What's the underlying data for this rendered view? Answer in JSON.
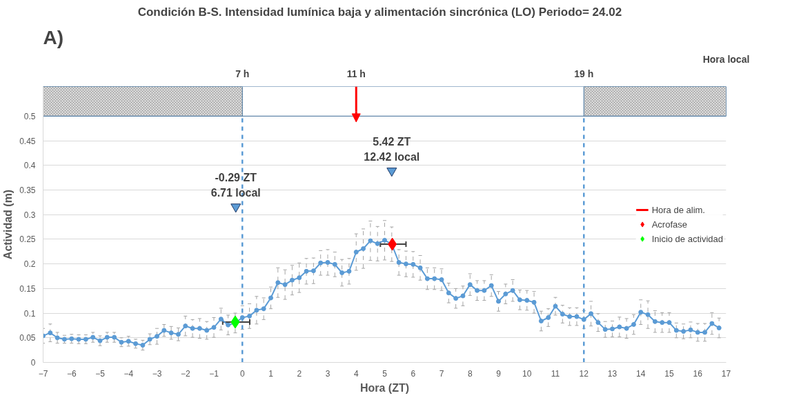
{
  "chart_data": {
    "type": "line",
    "title": "Condición B-S. Intensidad lumínica baja y alimentación sincrónica (LO)    Periodo= 24.02",
    "xlabel": "Hora (ZT)",
    "ylabel": "Actividad (m)",
    "x2label": "Hora local",
    "xlim": [
      -7,
      17
    ],
    "xticks": [
      -7,
      -6,
      -5,
      -4,
      -3,
      -2,
      -1,
      0,
      1,
      2,
      3,
      4,
      5,
      6,
      7,
      8,
      9,
      10,
      11,
      12,
      13,
      14,
      15,
      16,
      17
    ],
    "x2lim": [
      0,
      24
    ],
    "x2ticks": [
      {
        "value": 7,
        "label": "7 h"
      },
      {
        "value": 11,
        "label": "11 h"
      },
      {
        "value": 19,
        "label": "19 h"
      }
    ],
    "ylim": [
      0,
      0.56
    ],
    "yticks": [
      0,
      0.05,
      0.1,
      0.15,
      0.2,
      0.25,
      0.3,
      0.35,
      0.4,
      0.45,
      0.5
    ],
    "grid": true,
    "legend": "right",
    "series": [
      {
        "marker": "circle",
        "color": "#5b9bd5",
        "x": [
          -7,
          -6.75,
          -6.5,
          -6.25,
          -6,
          -5.75,
          -5.5,
          -5.25,
          -5,
          -4.75,
          -4.5,
          -4.25,
          -4,
          -3.75,
          -3.5,
          -3.25,
          -3,
          -2.75,
          -2.5,
          -2.25,
          -2,
          -1.75,
          -1.5,
          -1.25,
          -1,
          -0.75,
          -0.5,
          -0.25,
          0,
          0.25,
          0.5,
          0.75,
          1,
          1.25,
          1.5,
          1.75,
          2,
          2.25,
          2.5,
          2.75,
          3,
          3.25,
          3.5,
          3.75,
          4,
          4.25,
          4.5,
          4.75,
          5,
          5.25,
          5.5,
          5.75,
          6,
          6.25,
          6.5,
          6.75,
          7,
          7.25,
          7.5,
          7.75,
          8,
          8.25,
          8.5,
          8.75,
          9,
          9.25,
          9.5,
          9.75,
          10,
          10.25,
          10.5,
          10.75,
          11,
          11.25,
          11.5,
          11.75,
          12,
          12.25,
          12.5,
          12.75,
          13,
          13.25,
          13.5,
          13.75,
          14,
          14.25,
          14.5,
          14.75,
          15,
          15.25,
          15.5,
          15.75,
          16,
          16.25,
          16.5,
          16.75
        ],
        "values": [
          0.054,
          0.06,
          0.05,
          0.047,
          0.048,
          0.047,
          0.047,
          0.051,
          0.044,
          0.051,
          0.051,
          0.041,
          0.043,
          0.038,
          0.035,
          0.047,
          0.053,
          0.065,
          0.06,
          0.057,
          0.074,
          0.069,
          0.069,
          0.065,
          0.071,
          0.088,
          0.076,
          0.08,
          0.091,
          0.094,
          0.106,
          0.109,
          0.131,
          0.162,
          0.158,
          0.167,
          0.172,
          0.185,
          0.186,
          0.202,
          0.203,
          0.199,
          0.182,
          0.185,
          0.224,
          0.231,
          0.247,
          0.241,
          0.248,
          0.24,
          0.203,
          0.2,
          0.199,
          0.192,
          0.17,
          0.17,
          0.168,
          0.141,
          0.13,
          0.135,
          0.158,
          0.146,
          0.146,
          0.156,
          0.124,
          0.139,
          0.146,
          0.127,
          0.126,
          0.122,
          0.084,
          0.091,
          0.114,
          0.098,
          0.093,
          0.093,
          0.087,
          0.099,
          0.081,
          0.067,
          0.068,
          0.072,
          0.069,
          0.077,
          0.102,
          0.097,
          0.083,
          0.081,
          0.081,
          0.065,
          0.063,
          0.066,
          0.061,
          0.061,
          0.079,
          0.07
        ],
        "errors": [
          0.015,
          0.018,
          0.011,
          0.008,
          0.009,
          0.009,
          0.009,
          0.01,
          0.01,
          0.01,
          0.01,
          0.009,
          0.01,
          0.009,
          0.01,
          0.011,
          0.016,
          0.012,
          0.013,
          0.013,
          0.02,
          0.018,
          0.02,
          0.018,
          0.02,
          0.022,
          0.02,
          0.02,
          0.024,
          0.025,
          0.028,
          0.022,
          0.022,
          0.03,
          0.03,
          0.03,
          0.03,
          0.026,
          0.026,
          0.025,
          0.026,
          0.025,
          0.027,
          0.026,
          0.037,
          0.04,
          0.04,
          0.035,
          0.04,
          0.035,
          0.026,
          0.026,
          0.026,
          0.025,
          0.022,
          0.022,
          0.022,
          0.02,
          0.02,
          0.02,
          0.022,
          0.02,
          0.02,
          0.022,
          0.02,
          0.02,
          0.022,
          0.02,
          0.02,
          0.022,
          0.02,
          0.018,
          0.018,
          0.018,
          0.018,
          0.018,
          0.018,
          0.025,
          0.018,
          0.016,
          0.016,
          0.02,
          0.02,
          0.02,
          0.025,
          0.028,
          0.022,
          0.02,
          0.02,
          0.015,
          0.015,
          0.016,
          0.018,
          0.018,
          0.022,
          0.02
        ]
      },
      {
        "type": "scatter",
        "marker": "diamond",
        "name": "Acrofase",
        "color": "#ff0000",
        "x": [
          5.27
        ],
        "values": [
          0.24
        ],
        "xerrors": [
          [
            4.85,
            5.75
          ]
        ]
      },
      {
        "type": "scatter",
        "marker": "diamond",
        "name": "Inicio de actividad",
        "color": "#00ff00",
        "x": [
          -0.25
        ],
        "values": [
          0.082
        ],
        "xerrors": [
          [
            -0.69,
            0.26
          ]
        ]
      },
      {
        "type": "scatter",
        "marker": "triangle",
        "color": "#5b9bd5",
        "x": [
          -0.23,
          5.25
        ],
        "values": [
          0.316,
          0.389
        ]
      }
    ],
    "ref_lines": [
      {
        "axis": "x",
        "value": 0,
        "label": null,
        "color": "#5b9bd5",
        "line_style": "dashed"
      },
      {
        "axis": "x",
        "value": 12,
        "label": null,
        "color": "#5b9bd5",
        "line_style": "dashed"
      },
      {
        "axis": "x",
        "value": 4,
        "label": "Hora de alim.",
        "color": "#ff0000",
        "line_style": "solid"
      }
    ],
    "bands": [
      {
        "axis": "x",
        "from": -7,
        "to": 0,
        "label": null,
        "color": "#a6a6a6"
      },
      {
        "axis": "x",
        "from": 12,
        "to": 17,
        "label": null,
        "color": "#a6a6a6"
      }
    ],
    "annotations": [
      "A)",
      {
        "text": "-0.29 ZT\n6.71 local",
        "x": -0.23,
        "y": 0.316
      },
      {
        "text": "5.42 ZT\n12.42 local",
        "x": 5.25,
        "y": 0.389
      }
    ]
  }
}
